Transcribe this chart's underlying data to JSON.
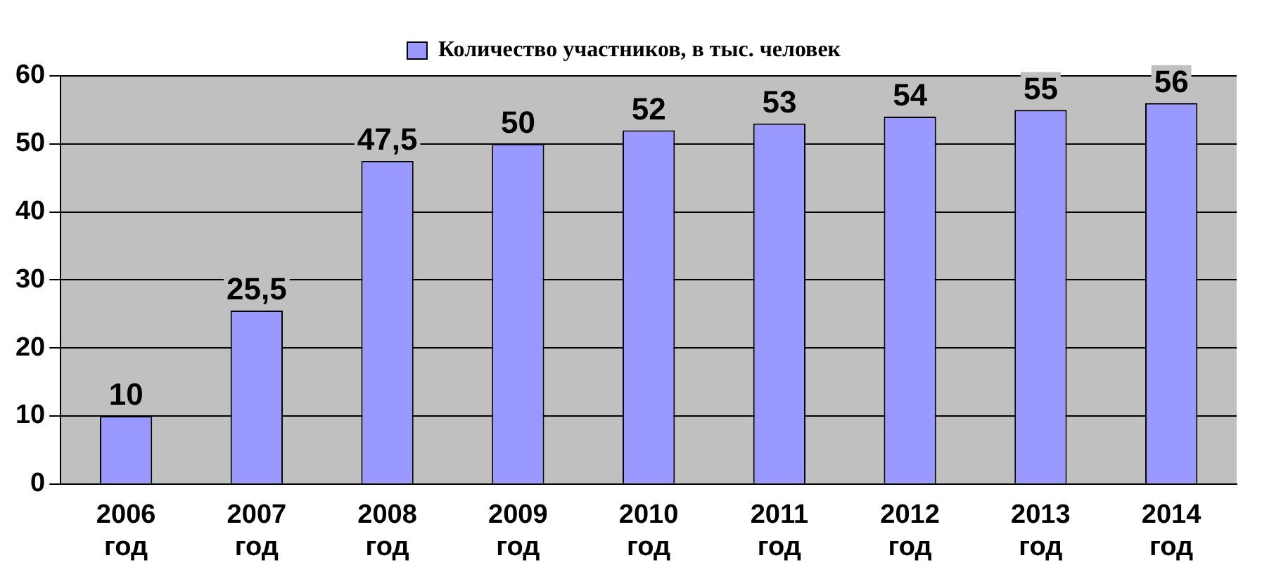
{
  "chart_data": {
    "type": "bar",
    "categories": [
      "2006 год",
      "2007 год",
      "2008 год",
      "2009 год",
      "2010 год",
      "2011 год",
      "2012 год",
      "2013 год",
      "2014 год"
    ],
    "series": [
      {
        "name": "Количество участников, в тыс. человек",
        "color": "#9999ff",
        "values": [
          10,
          25.5,
          47.5,
          50,
          52,
          53,
          54,
          55,
          56
        ],
        "value_labels": [
          "10",
          "25,5",
          "47,5",
          "50",
          "52",
          "53",
          "54",
          "55",
          "56"
        ]
      }
    ],
    "ylim": [
      0,
      60
    ],
    "yticks": [
      0,
      10,
      20,
      30,
      40,
      50,
      60
    ],
    "grid": "y",
    "legend": "top"
  }
}
